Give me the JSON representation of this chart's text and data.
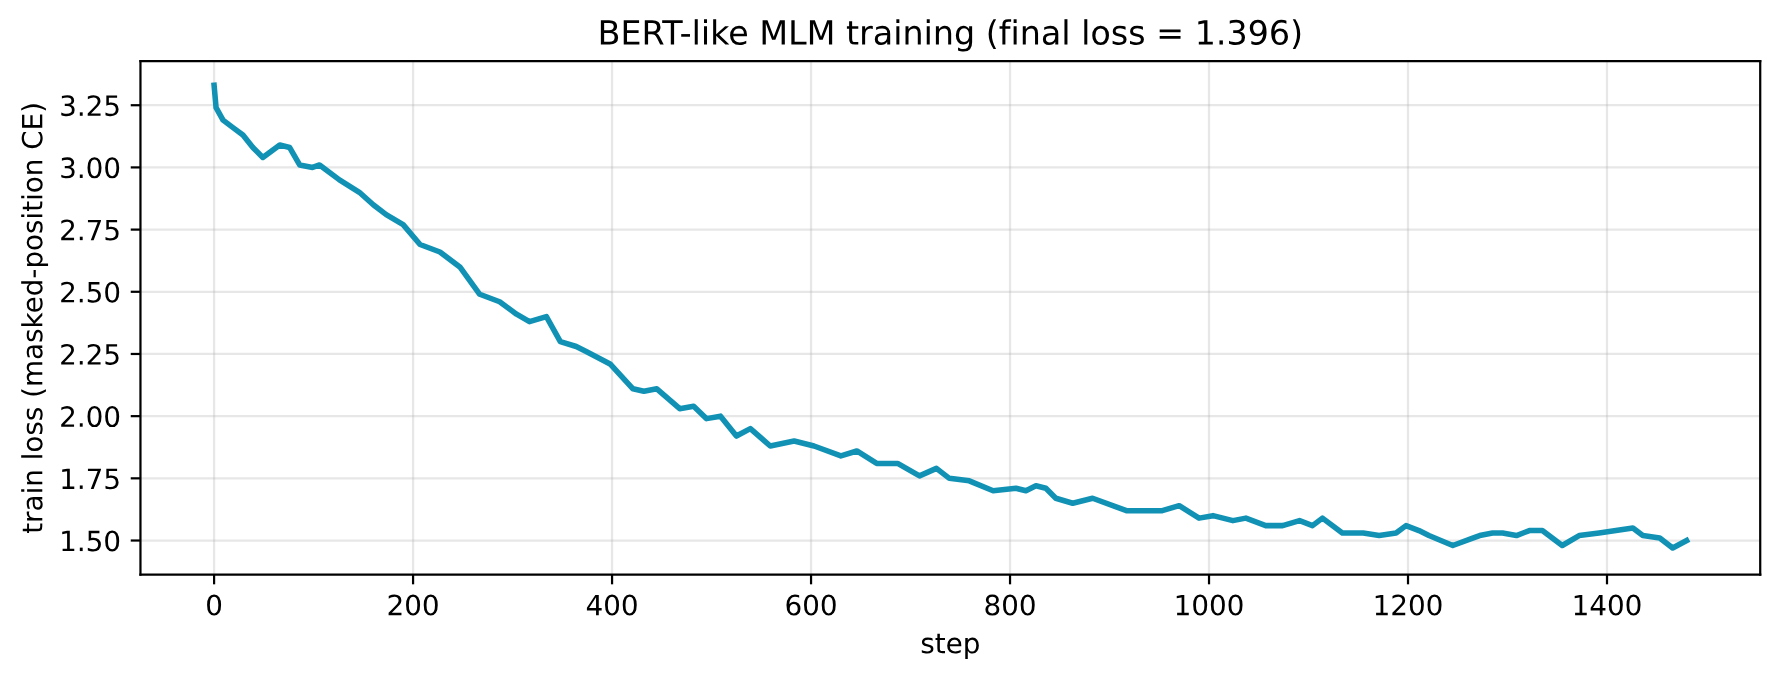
{
  "chart_data": {
    "type": "line",
    "title": "BERT-like MLM training (final loss = 1.396)",
    "xlabel": "step",
    "ylabel": "train loss (masked-position CE)",
    "x": [
      0,
      2,
      9,
      19,
      29,
      39,
      49,
      66,
      76,
      86,
      99,
      106,
      126,
      146,
      160,
      173,
      190,
      207,
      227,
      247,
      267,
      287,
      304,
      317,
      334,
      348,
      364,
      374,
      398,
      421,
      432,
      445,
      468,
      482,
      495,
      509,
      525,
      539,
      559,
      583,
      603,
      630,
      646,
      666,
      687,
      709,
      726,
      739,
      759,
      783,
      806,
      816,
      826,
      836,
      846,
      863,
      883,
      917,
      953,
      970,
      990,
      1004,
      1024,
      1037,
      1057,
      1074,
      1091,
      1104,
      1114,
      1134,
      1155,
      1171,
      1188,
      1198,
      1211,
      1221,
      1245,
      1265,
      1272,
      1285,
      1295,
      1309,
      1322,
      1335,
      1355,
      1372,
      1392,
      1409,
      1426,
      1436,
      1453,
      1466,
      1480
    ],
    "series": [
      {
        "color": "#1192b5",
        "values": [
          3.33,
          3.24,
          3.19,
          3.16,
          3.13,
          3.08,
          3.04,
          3.09,
          3.08,
          3.01,
          3.0,
          3.01,
          2.95,
          2.9,
          2.85,
          2.81,
          2.77,
          2.69,
          2.66,
          2.6,
          2.49,
          2.46,
          2.41,
          2.38,
          2.4,
          2.3,
          2.28,
          2.26,
          2.21,
          2.11,
          2.1,
          2.11,
          2.03,
          2.04,
          1.99,
          2.0,
          1.92,
          1.95,
          1.88,
          1.9,
          1.88,
          1.84,
          1.86,
          1.81,
          1.81,
          1.76,
          1.79,
          1.75,
          1.74,
          1.7,
          1.71,
          1.7,
          1.72,
          1.71,
          1.67,
          1.65,
          1.67,
          1.62,
          1.62,
          1.64,
          1.59,
          1.6,
          1.58,
          1.59,
          1.56,
          1.56,
          1.58,
          1.56,
          1.59,
          1.53,
          1.53,
          1.52,
          1.53,
          1.56,
          1.54,
          1.52,
          1.48,
          1.51,
          1.52,
          1.53,
          1.53,
          1.52,
          1.54,
          1.54,
          1.48,
          1.52,
          1.53,
          1.54,
          1.55,
          1.52,
          1.51,
          1.47,
          1.5
        ]
      }
    ],
    "xlim": [
      -74,
      1554
    ],
    "ylim": [
      1.363,
      3.427
    ],
    "xticks": [
      0,
      200,
      400,
      600,
      800,
      1000,
      1200,
      1400
    ],
    "yticks": [
      {
        "value": 1.5,
        "label": "1.50"
      },
      {
        "value": 1.75,
        "label": "1.75"
      },
      {
        "value": 2.0,
        "label": "2.00"
      },
      {
        "value": 2.25,
        "label": "2.25"
      },
      {
        "value": 2.5,
        "label": "2.50"
      },
      {
        "value": 2.75,
        "label": "2.75"
      },
      {
        "value": 3.0,
        "label": "3.00"
      },
      {
        "value": 3.25,
        "label": "3.25"
      }
    ],
    "grid": true,
    "marker": "none",
    "line_style": "solid",
    "legend": false
  }
}
